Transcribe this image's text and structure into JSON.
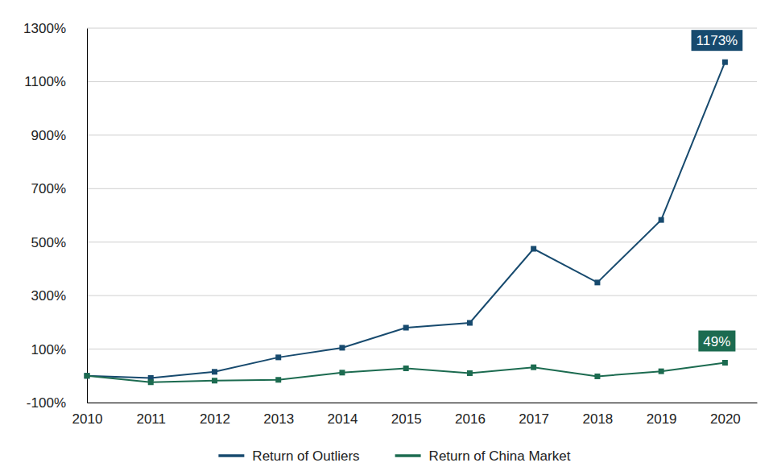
{
  "chart_data": {
    "type": "line",
    "x": [
      2010,
      2011,
      2012,
      2013,
      2014,
      2015,
      2016,
      2017,
      2018,
      2019,
      2020
    ],
    "xlim": [
      2010,
      2020.5
    ],
    "xticks": [
      2010,
      2011,
      2012,
      2013,
      2014,
      2015,
      2016,
      2017,
      2018,
      2019,
      2020
    ],
    "ylim": [
      -100,
      1300
    ],
    "yticks": [
      {
        "value": -100,
        "label": "-100%"
      },
      {
        "value": 100,
        "label": "100%"
      },
      {
        "value": 300,
        "label": "300%"
      },
      {
        "value": 500,
        "label": "500%"
      },
      {
        "value": 700,
        "label": "700%"
      },
      {
        "value": 900,
        "label": "900%"
      },
      {
        "value": 1100,
        "label": "1100%"
      },
      {
        "value": 1300,
        "label": "1300%"
      }
    ],
    "grid": true,
    "legend": "bottom",
    "marker": "square",
    "series": [
      {
        "name": "Return of Outliers",
        "color": "#174a6e",
        "values": [
          0,
          -8,
          15,
          69,
          105,
          180,
          198,
          475,
          349,
          583,
          1173
        ],
        "data_labels": true,
        "value_labels": [
          null,
          null,
          null,
          null,
          null,
          null,
          null,
          null,
          null,
          null,
          "1173%"
        ]
      },
      {
        "name": "Return of China Market",
        "color": "#1c6b50",
        "values": [
          0,
          -24,
          -18,
          -15,
          12,
          28,
          10,
          32,
          -2,
          17,
          49
        ],
        "data_labels": true,
        "value_labels": [
          null,
          null,
          null,
          null,
          null,
          null,
          null,
          null,
          null,
          null,
          "49%"
        ]
      }
    ]
  }
}
